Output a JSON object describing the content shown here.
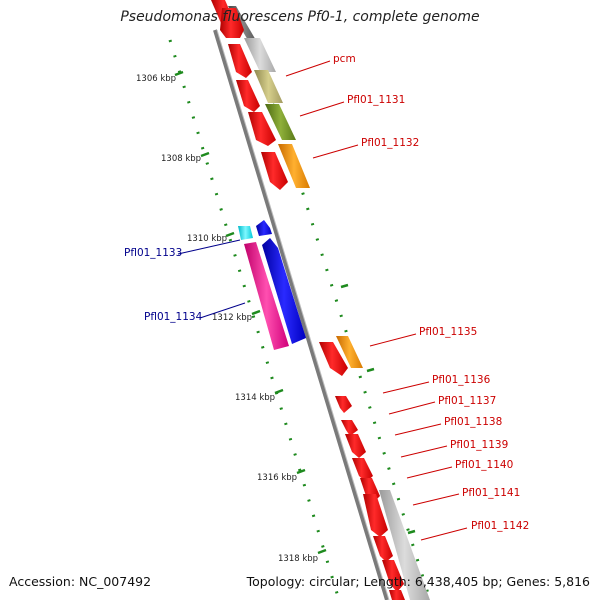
{
  "title": "Pseudomonas fluorescens Pf0-1, complete genome",
  "footer": {
    "accession": "Accession: NC_007492",
    "topology": "Topology: circular; Length: 6,438,405 bp; Genes: 5,816"
  },
  "colors": {
    "backbone": "#8a8a8a",
    "ticks": "#1e8a1e",
    "forward_cds": "#ff0000",
    "reverse_label": "#00008b",
    "forward_label": "#cc0000"
  },
  "ruler": [
    {
      "label": "1306 kbp"
    },
    {
      "label": "1308 kbp"
    },
    {
      "label": "1310 kbp"
    },
    {
      "label": "1312 kbp"
    },
    {
      "label": "1314 kbp"
    },
    {
      "label": "1316 kbp"
    },
    {
      "label": "1318 kbp"
    }
  ],
  "gene_labels": [
    {
      "text": "pcm",
      "strand": "forward"
    },
    {
      "text": "Pfl01_1131",
      "strand": "forward"
    },
    {
      "text": "Pfl01_1132",
      "strand": "forward"
    },
    {
      "text": "Pfl01_1133",
      "strand": "reverse"
    },
    {
      "text": "Pfl01_1134",
      "strand": "reverse"
    },
    {
      "text": "Pfl01_1135",
      "strand": "forward"
    },
    {
      "text": "Pfl01_1136",
      "strand": "forward"
    },
    {
      "text": "Pfl01_1137",
      "strand": "forward"
    },
    {
      "text": "Pfl01_1138",
      "strand": "forward"
    },
    {
      "text": "Pfl01_1139",
      "strand": "forward"
    },
    {
      "text": "Pfl01_1140",
      "strand": "forward"
    },
    {
      "text": "Pfl01_1141",
      "strand": "forward"
    },
    {
      "text": "Pfl01_1142",
      "strand": "forward"
    }
  ]
}
